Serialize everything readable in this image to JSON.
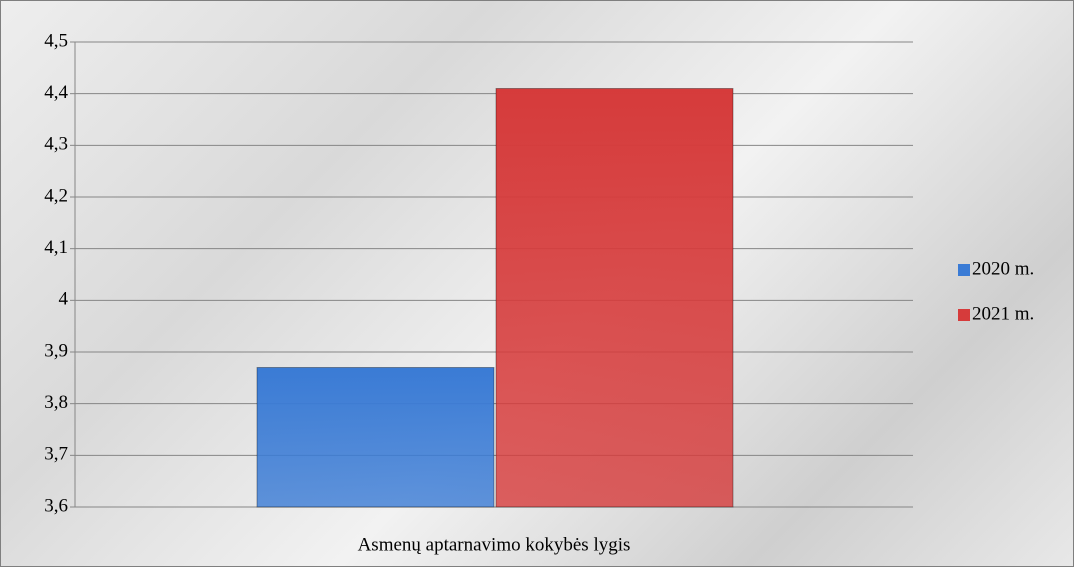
{
  "chart_data": {
    "type": "bar",
    "categories": [
      "Asmenų aptarnavimo kokybės lygis"
    ],
    "series": [
      {
        "name": "2020 m.",
        "color": "#3a7bd5",
        "values": [
          3.87
        ]
      },
      {
        "name": "2021 m.",
        "color": "#d63b3b",
        "values": [
          4.41
        ]
      }
    ],
    "ylim": [
      3.6,
      4.5
    ],
    "yticks": [
      {
        "value": 3.6,
        "label": "3,6"
      },
      {
        "value": 3.7,
        "label": "3,7"
      },
      {
        "value": 3.8,
        "label": "3,8"
      },
      {
        "value": 3.9,
        "label": "3,9"
      },
      4,
      {
        "value": 4.1,
        "label": "4,1"
      },
      {
        "value": 4.2,
        "label": "4,2"
      },
      {
        "value": 4.3,
        "label": "4,3"
      },
      {
        "value": 4.4,
        "label": "4,4"
      },
      {
        "value": 4.5,
        "label": "4,5"
      }
    ],
    "grid": true,
    "legend": "right"
  }
}
